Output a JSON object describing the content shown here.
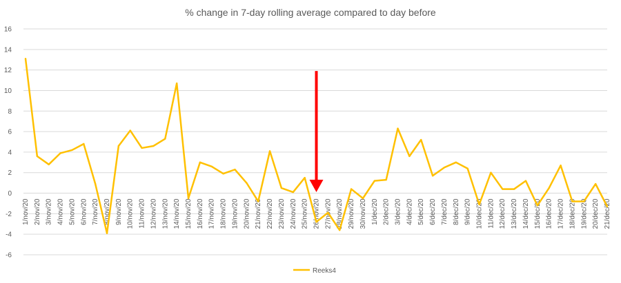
{
  "chart_data": {
    "type": "line",
    "title": "% change in 7-day rolling average compared to day before",
    "xlabel": "",
    "ylabel": "",
    "ylim": [
      -6,
      16
    ],
    "yticks": [
      -6,
      -4,
      -2,
      0,
      2,
      4,
      6,
      8,
      10,
      12,
      14,
      16
    ],
    "grid": true,
    "legend": "bottom-center",
    "categories": [
      "1/nov/20",
      "2/nov/20",
      "3/nov/20",
      "4/nov/20",
      "5/nov/20",
      "6/nov/20",
      "7/nov/20",
      "8/nov/20",
      "9/nov/20",
      "10/nov/20",
      "11/nov/20",
      "12/nov/20",
      "13/nov/20",
      "14/nov/20",
      "15/nov/20",
      "16/nov/20",
      "17/nov/20",
      "18/nov/20",
      "19/nov/20",
      "20/nov/20",
      "21/nov/20",
      "22/nov/20",
      "23/nov/20",
      "24/nov/20",
      "25/nov/20",
      "26/nov/20",
      "27/nov/20",
      "28/nov/20",
      "29/nov/20",
      "30/nov/20",
      "1/dec/20",
      "2/dec/20",
      "3/dec/20",
      "4/dec/20",
      "5/dec/20",
      "6/dec/20",
      "7/dec/20",
      "8/dec/20",
      "9/dec/20",
      "10/dec/20",
      "11/dec/20",
      "12/dec/20",
      "13/dec/20",
      "14/dec/20",
      "15/dec/20",
      "16/dec/20",
      "17/dec/20",
      "18/dec/20",
      "19/dec/20",
      "20/dec/20",
      "21/dec/20"
    ],
    "series": [
      {
        "name": "Reeks4",
        "color": "#ffc000",
        "values": [
          13.1,
          3.6,
          2.8,
          3.9,
          4.2,
          4.8,
          0.9,
          -3.9,
          4.6,
          6.1,
          4.4,
          4.6,
          5.3,
          10.7,
          -0.5,
          3.0,
          2.6,
          1.9,
          2.3,
          1.0,
          -0.8,
          4.1,
          0.5,
          0.1,
          1.5,
          -2.8,
          -1.9,
          -3.6,
          0.4,
          -0.5,
          1.2,
          1.3,
          6.3,
          3.6,
          5.2,
          1.7,
          2.5,
          3.0,
          2.4,
          -1.1,
          2.0,
          0.4,
          0.4,
          1.2,
          -1.2,
          0.5,
          2.7,
          -0.8,
          -0.8,
          0.9,
          -1.3
        ]
      }
    ],
    "annotations": [
      {
        "type": "arrow",
        "color": "#ff0000",
        "x_category": "26/nov/20",
        "from_y": 11.9,
        "to_y": 0.1
      }
    ]
  }
}
